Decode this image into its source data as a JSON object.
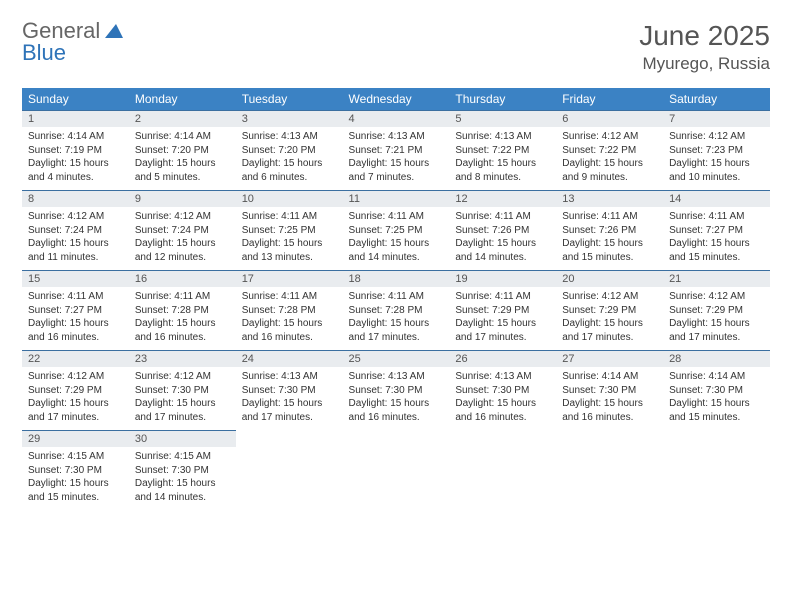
{
  "brand": {
    "part1": "General",
    "part2": "Blue"
  },
  "title": "June 2025",
  "location": "Myurego, Russia",
  "colors": {
    "header_bg": "#3b82c4",
    "header_text": "#ffffff",
    "daynum_bg": "#e9ecef",
    "cell_border": "#3b6fa0",
    "brand_gray": "#666666",
    "brand_blue": "#2e73b8",
    "title_color": "#555555"
  },
  "weekdays": [
    "Sunday",
    "Monday",
    "Tuesday",
    "Wednesday",
    "Thursday",
    "Friday",
    "Saturday"
  ],
  "weeks": [
    [
      {
        "n": "1",
        "sr": "Sunrise: 4:14 AM",
        "ss": "Sunset: 7:19 PM",
        "d1": "Daylight: 15 hours",
        "d2": "and 4 minutes."
      },
      {
        "n": "2",
        "sr": "Sunrise: 4:14 AM",
        "ss": "Sunset: 7:20 PM",
        "d1": "Daylight: 15 hours",
        "d2": "and 5 minutes."
      },
      {
        "n": "3",
        "sr": "Sunrise: 4:13 AM",
        "ss": "Sunset: 7:20 PM",
        "d1": "Daylight: 15 hours",
        "d2": "and 6 minutes."
      },
      {
        "n": "4",
        "sr": "Sunrise: 4:13 AM",
        "ss": "Sunset: 7:21 PM",
        "d1": "Daylight: 15 hours",
        "d2": "and 7 minutes."
      },
      {
        "n": "5",
        "sr": "Sunrise: 4:13 AM",
        "ss": "Sunset: 7:22 PM",
        "d1": "Daylight: 15 hours",
        "d2": "and 8 minutes."
      },
      {
        "n": "6",
        "sr": "Sunrise: 4:12 AM",
        "ss": "Sunset: 7:22 PM",
        "d1": "Daylight: 15 hours",
        "d2": "and 9 minutes."
      },
      {
        "n": "7",
        "sr": "Sunrise: 4:12 AM",
        "ss": "Sunset: 7:23 PM",
        "d1": "Daylight: 15 hours",
        "d2": "and 10 minutes."
      }
    ],
    [
      {
        "n": "8",
        "sr": "Sunrise: 4:12 AM",
        "ss": "Sunset: 7:24 PM",
        "d1": "Daylight: 15 hours",
        "d2": "and 11 minutes."
      },
      {
        "n": "9",
        "sr": "Sunrise: 4:12 AM",
        "ss": "Sunset: 7:24 PM",
        "d1": "Daylight: 15 hours",
        "d2": "and 12 minutes."
      },
      {
        "n": "10",
        "sr": "Sunrise: 4:11 AM",
        "ss": "Sunset: 7:25 PM",
        "d1": "Daylight: 15 hours",
        "d2": "and 13 minutes."
      },
      {
        "n": "11",
        "sr": "Sunrise: 4:11 AM",
        "ss": "Sunset: 7:25 PM",
        "d1": "Daylight: 15 hours",
        "d2": "and 14 minutes."
      },
      {
        "n": "12",
        "sr": "Sunrise: 4:11 AM",
        "ss": "Sunset: 7:26 PM",
        "d1": "Daylight: 15 hours",
        "d2": "and 14 minutes."
      },
      {
        "n": "13",
        "sr": "Sunrise: 4:11 AM",
        "ss": "Sunset: 7:26 PM",
        "d1": "Daylight: 15 hours",
        "d2": "and 15 minutes."
      },
      {
        "n": "14",
        "sr": "Sunrise: 4:11 AM",
        "ss": "Sunset: 7:27 PM",
        "d1": "Daylight: 15 hours",
        "d2": "and 15 minutes."
      }
    ],
    [
      {
        "n": "15",
        "sr": "Sunrise: 4:11 AM",
        "ss": "Sunset: 7:27 PM",
        "d1": "Daylight: 15 hours",
        "d2": "and 16 minutes."
      },
      {
        "n": "16",
        "sr": "Sunrise: 4:11 AM",
        "ss": "Sunset: 7:28 PM",
        "d1": "Daylight: 15 hours",
        "d2": "and 16 minutes."
      },
      {
        "n": "17",
        "sr": "Sunrise: 4:11 AM",
        "ss": "Sunset: 7:28 PM",
        "d1": "Daylight: 15 hours",
        "d2": "and 16 minutes."
      },
      {
        "n": "18",
        "sr": "Sunrise: 4:11 AM",
        "ss": "Sunset: 7:28 PM",
        "d1": "Daylight: 15 hours",
        "d2": "and 17 minutes."
      },
      {
        "n": "19",
        "sr": "Sunrise: 4:11 AM",
        "ss": "Sunset: 7:29 PM",
        "d1": "Daylight: 15 hours",
        "d2": "and 17 minutes."
      },
      {
        "n": "20",
        "sr": "Sunrise: 4:12 AM",
        "ss": "Sunset: 7:29 PM",
        "d1": "Daylight: 15 hours",
        "d2": "and 17 minutes."
      },
      {
        "n": "21",
        "sr": "Sunrise: 4:12 AM",
        "ss": "Sunset: 7:29 PM",
        "d1": "Daylight: 15 hours",
        "d2": "and 17 minutes."
      }
    ],
    [
      {
        "n": "22",
        "sr": "Sunrise: 4:12 AM",
        "ss": "Sunset: 7:29 PM",
        "d1": "Daylight: 15 hours",
        "d2": "and 17 minutes."
      },
      {
        "n": "23",
        "sr": "Sunrise: 4:12 AM",
        "ss": "Sunset: 7:30 PM",
        "d1": "Daylight: 15 hours",
        "d2": "and 17 minutes."
      },
      {
        "n": "24",
        "sr": "Sunrise: 4:13 AM",
        "ss": "Sunset: 7:30 PM",
        "d1": "Daylight: 15 hours",
        "d2": "and 17 minutes."
      },
      {
        "n": "25",
        "sr": "Sunrise: 4:13 AM",
        "ss": "Sunset: 7:30 PM",
        "d1": "Daylight: 15 hours",
        "d2": "and 16 minutes."
      },
      {
        "n": "26",
        "sr": "Sunrise: 4:13 AM",
        "ss": "Sunset: 7:30 PM",
        "d1": "Daylight: 15 hours",
        "d2": "and 16 minutes."
      },
      {
        "n": "27",
        "sr": "Sunrise: 4:14 AM",
        "ss": "Sunset: 7:30 PM",
        "d1": "Daylight: 15 hours",
        "d2": "and 16 minutes."
      },
      {
        "n": "28",
        "sr": "Sunrise: 4:14 AM",
        "ss": "Sunset: 7:30 PM",
        "d1": "Daylight: 15 hours",
        "d2": "and 15 minutes."
      }
    ],
    [
      {
        "n": "29",
        "sr": "Sunrise: 4:15 AM",
        "ss": "Sunset: 7:30 PM",
        "d1": "Daylight: 15 hours",
        "d2": "and 15 minutes."
      },
      {
        "n": "30",
        "sr": "Sunrise: 4:15 AM",
        "ss": "Sunset: 7:30 PM",
        "d1": "Daylight: 15 hours",
        "d2": "and 14 minutes."
      },
      null,
      null,
      null,
      null,
      null
    ]
  ]
}
